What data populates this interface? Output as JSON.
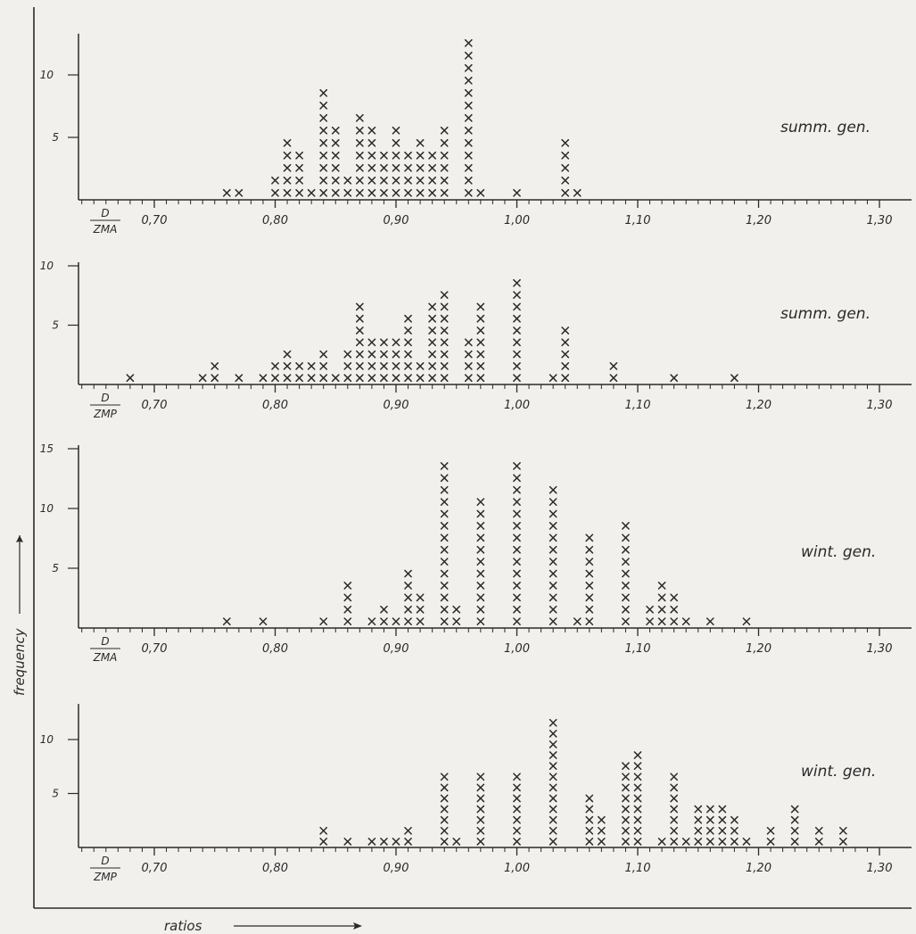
{
  "figure": {
    "ylabel": "frequency",
    "xlabel": "ratios"
  },
  "chart_data": [
    {
      "type": "scatter",
      "ratio_numerator": "D",
      "ratio_denominator": "ZMA",
      "label": "summ. gen.",
      "xlim": [
        0.7,
        1.3
      ],
      "ylim": [
        0,
        13
      ],
      "xticks": [
        "0,70",
        "0,80",
        "0,90",
        "1,00",
        "1,10",
        "1,20",
        "1,30"
      ],
      "yticks": [
        5,
        10
      ],
      "x": [
        0.76,
        0.77,
        0.8,
        0.81,
        0.82,
        0.83,
        0.84,
        0.85,
        0.86,
        0.87,
        0.88,
        0.89,
        0.9,
        0.91,
        0.92,
        0.93,
        0.94,
        0.96,
        0.97,
        1.0,
        1.04,
        1.05
      ],
      "y": [
        1,
        1,
        2,
        5,
        4,
        1,
        9,
        6,
        2,
        7,
        6,
        4,
        6,
        4,
        5,
        4,
        6,
        13,
        1,
        1,
        5,
        1
      ]
    },
    {
      "type": "scatter",
      "ratio_numerator": "D",
      "ratio_denominator": "ZMP",
      "label": "summ. gen.",
      "xlim": [
        0.7,
        1.3
      ],
      "ylim": [
        0,
        10
      ],
      "xticks": [
        "0,70",
        "0,80",
        "0,90",
        "1,00",
        "1,10",
        "1,20",
        "1,30"
      ],
      "yticks": [
        5,
        10
      ],
      "x": [
        0.68,
        0.74,
        0.75,
        0.77,
        0.79,
        0.8,
        0.81,
        0.82,
        0.83,
        0.84,
        0.85,
        0.86,
        0.87,
        0.88,
        0.89,
        0.9,
        0.91,
        0.92,
        0.93,
        0.94,
        0.96,
        0.97,
        1.0,
        1.03,
        1.04,
        1.08,
        1.13,
        1.18
      ],
      "y": [
        1,
        1,
        2,
        1,
        1,
        2,
        3,
        2,
        2,
        3,
        1,
        3,
        7,
        4,
        4,
        4,
        6,
        2,
        7,
        8,
        4,
        7,
        9,
        1,
        5,
        2,
        1,
        1
      ]
    },
    {
      "type": "scatter",
      "ratio_numerator": "D",
      "ratio_denominator": "ZMA",
      "label": "wint. gen.",
      "xlim": [
        0.7,
        1.3
      ],
      "ylim": [
        0,
        15
      ],
      "xticks": [
        "0,70",
        "0,80",
        "0,90",
        "1,00",
        "1,10",
        "1,20",
        "1,30"
      ],
      "yticks": [
        5,
        10,
        15
      ],
      "x": [
        0.76,
        0.79,
        0.84,
        0.86,
        0.88,
        0.89,
        0.9,
        0.91,
        0.92,
        0.94,
        0.95,
        0.97,
        1.0,
        1.03,
        1.05,
        1.06,
        1.09,
        1.11,
        1.12,
        1.13,
        1.14,
        1.16,
        1.19
      ],
      "y": [
        1,
        1,
        1,
        4,
        1,
        2,
        1,
        5,
        3,
        14,
        2,
        11,
        14,
        12,
        1,
        8,
        9,
        2,
        4,
        3,
        1,
        1,
        1
      ]
    },
    {
      "type": "scatter",
      "ratio_numerator": "D",
      "ratio_denominator": "ZMP",
      "label": "wint. gen.",
      "xlim": [
        0.7,
        1.3
      ],
      "ylim": [
        0,
        13
      ],
      "xticks": [
        "0,70",
        "0,80",
        "0,90",
        "1,00",
        "1,10",
        "1,20",
        "1,30"
      ],
      "yticks": [
        5,
        10
      ],
      "x": [
        0.84,
        0.86,
        0.88,
        0.89,
        0.9,
        0.91,
        0.94,
        0.95,
        0.97,
        1.0,
        1.03,
        1.06,
        1.07,
        1.09,
        1.1,
        1.12,
        1.13,
        1.14,
        1.15,
        1.16,
        1.17,
        1.18,
        1.19,
        1.21,
        1.23,
        1.25,
        1.27
      ],
      "y": [
        2,
        1,
        1,
        1,
        1,
        2,
        7,
        1,
        7,
        7,
        12,
        5,
        3,
        8,
        9,
        1,
        7,
        1,
        4,
        4,
        4,
        3,
        1,
        2,
        4,
        2,
        2
      ]
    }
  ],
  "colors": {
    "ink": "#2a2a2a",
    "paper": "#f1f0ec"
  }
}
